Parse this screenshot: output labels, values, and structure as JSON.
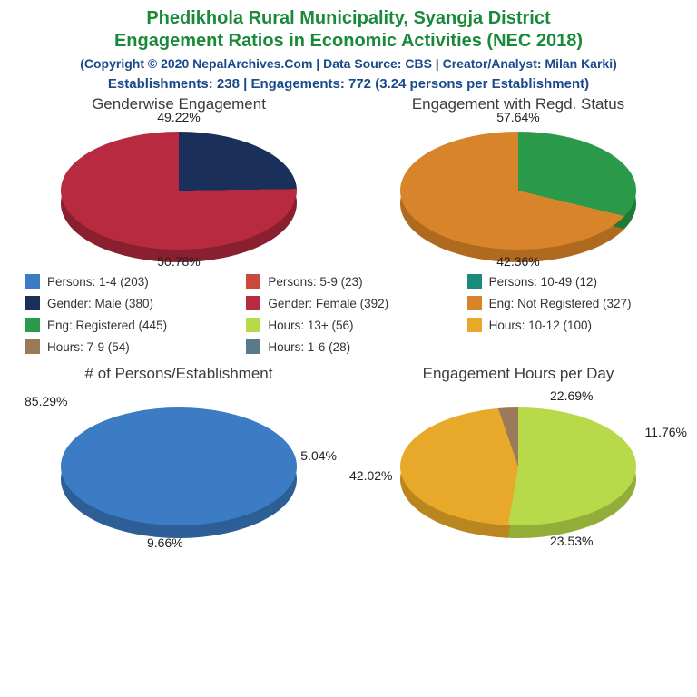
{
  "colors": {
    "title_green": "#1a8a3a",
    "subtitle_blue": "#1a4a8a",
    "persons_1_4": "#3b7cc4",
    "persons_5_9": "#c94a3b",
    "persons_10_49": "#1a8a7a",
    "male": "#1a2f5a",
    "female": "#b82a3f",
    "registered": "#2a9a4a",
    "not_registered": "#d8842a",
    "hours_13p": "#b8d94a",
    "hours_10_12": "#e8a82a",
    "hours_7_9": "#9a7a5a",
    "hours_1_6": "#5a7a8a"
  },
  "header": {
    "line1": "Phedikhola Rural Municipality, Syangja District",
    "line2": "Engagement Ratios in Economic Activities (NEC 2018)",
    "copyright": "(Copyright © 2020 NepalArchives.Com | Data Source: CBS | Creator/Analyst: Milan Karki)",
    "stats": "Establishments: 238 | Engagements: 772 (3.24 persons per Establishment)"
  },
  "chart_top_left": {
    "title": "Genderwise Engagement",
    "slices": [
      {
        "pct": 49.22,
        "label": "49.22%",
        "color": "#1a2f5a",
        "side": "#0f1d3a"
      },
      {
        "pct": 50.78,
        "label": "50.78%",
        "color": "#b82a3f",
        "side": "#8a1f2f"
      }
    ]
  },
  "chart_top_right": {
    "title": "Engagement with Regd. Status",
    "slices": [
      {
        "pct": 57.64,
        "label": "57.64%",
        "color": "#2a9a4a",
        "side": "#1f7a38"
      },
      {
        "pct": 42.36,
        "label": "42.36%",
        "color": "#d8842a",
        "side": "#b06a1f"
      }
    ]
  },
  "chart_bot_left": {
    "title": "# of Persons/Establishment",
    "slices": [
      {
        "pct": 85.29,
        "label": "85.29%",
        "color": "#3b7cc4",
        "side": "#2d5e96"
      },
      {
        "pct": 9.66,
        "label": "9.66%",
        "color": "#c94a3b",
        "side": "#9a382d"
      },
      {
        "pct": 5.04,
        "label": "5.04%",
        "color": "#1a8a7a",
        "side": "#136a5e"
      }
    ]
  },
  "chart_bot_right": {
    "title": "Engagement Hours per Day",
    "slices": [
      {
        "pct": 23.53,
        "label": "23.53%",
        "color": "#b8d94a",
        "side": "#92ad38"
      },
      {
        "pct": 42.02,
        "label": "42.02%",
        "color": "#e8a82a",
        "side": "#ba861f"
      },
      {
        "pct": 22.69,
        "label": "22.69%",
        "color": "#9a7a5a",
        "side": "#7a6048"
      },
      {
        "pct": 11.76,
        "label": "11.76%",
        "color": "#5a7a8a",
        "side": "#465f6c"
      }
    ]
  },
  "legend": [
    {
      "color": "#3b7cc4",
      "text": "Persons: 1-4 (203)"
    },
    {
      "color": "#c94a3b",
      "text": "Persons: 5-9 (23)"
    },
    {
      "color": "#1a8a7a",
      "text": "Persons: 10-49 (12)"
    },
    {
      "color": "#1a2f5a",
      "text": "Gender: Male (380)"
    },
    {
      "color": "#b82a3f",
      "text": "Gender: Female (392)"
    },
    {
      "color": "#d8842a",
      "text": "Eng: Not Registered (327)"
    },
    {
      "color": "#2a9a4a",
      "text": "Eng: Registered (445)"
    },
    {
      "color": "#b8d94a",
      "text": "Hours: 13+ (56)"
    },
    {
      "color": "#e8a82a",
      "text": "Hours: 10-12 (100)"
    },
    {
      "color": "#9a7a5a",
      "text": "Hours: 7-9 (54)"
    },
    {
      "color": "#5a7a8a",
      "text": "Hours: 1-6 (28)"
    }
  ]
}
